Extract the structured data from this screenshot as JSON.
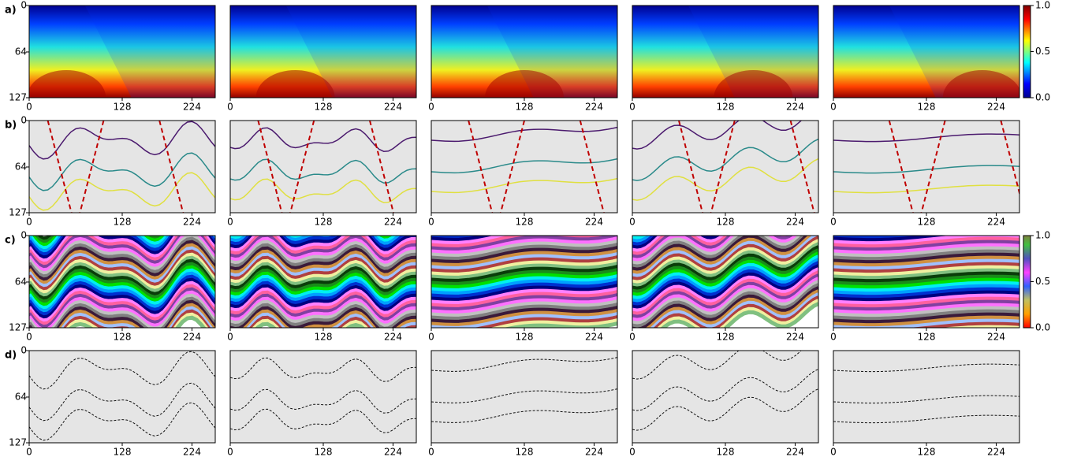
{
  "figure": {
    "rows": [
      {
        "label": "a)"
      },
      {
        "label": "b)"
      },
      {
        "label": "c)"
      },
      {
        "label": "d)"
      }
    ],
    "columns": 5,
    "xlim": [
      0,
      256
    ],
    "xticks": [
      0,
      128,
      224
    ],
    "ylim": [
      0,
      127
    ],
    "yticks": [
      0,
      64,
      127
    ],
    "colorbar_lim": [
      0,
      1
    ],
    "colorbar_ticks": [
      {
        "value": 0,
        "label": "0.0"
      },
      {
        "value": 0.5,
        "label": "0.5"
      },
      {
        "value": 1,
        "label": "1.0"
      }
    ]
  }
}
